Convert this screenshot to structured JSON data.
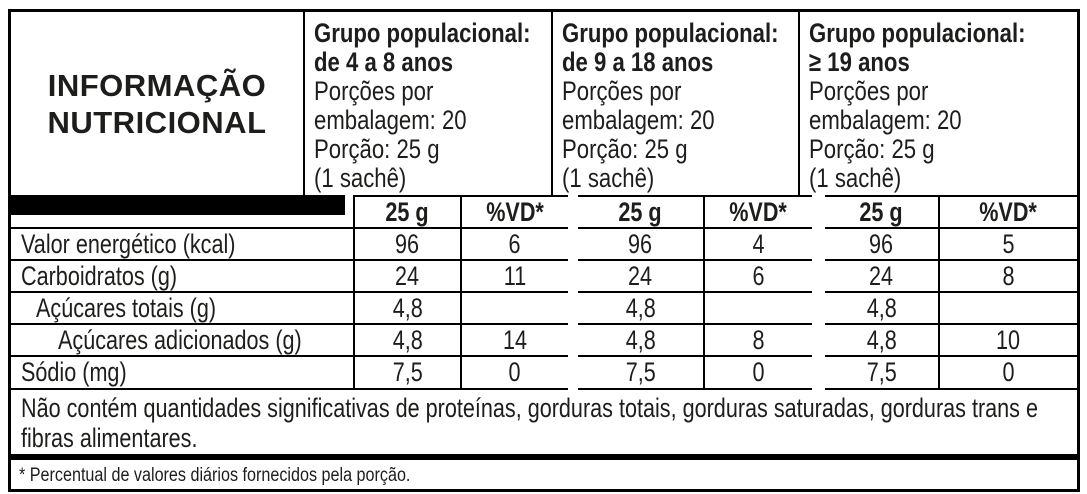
{
  "colors": {
    "border": "#000000",
    "header_bar": "#000000",
    "background": "#ffffff",
    "text": "#1d1d1b"
  },
  "title": "INFORMAÇÃO NUTRICIONAL",
  "groups": [
    {
      "group_label": "Grupo populacional:",
      "age_range": "de 4 a 8 anos",
      "servings_line1": "Porções por",
      "servings_line2": "embalagem: 20",
      "portion": "Porção: 25 g",
      "portion_note": "(1 sachê)",
      "amount_header": "25 g",
      "dv_header": "%VD*"
    },
    {
      "group_label": "Grupo populacional:",
      "age_range": "de 9 a 18 anos",
      "servings_line1": "Porções por",
      "servings_line2": "embalagem: 20",
      "portion": "Porção: 25 g",
      "portion_note": "(1 sachê)",
      "amount_header": "25 g",
      "dv_header": "%VD*"
    },
    {
      "group_label": "Grupo populacional:",
      "age_range": "≥ 19 anos",
      "servings_line1": "Porções por",
      "servings_line2": "embalagem: 20",
      "portion": "Porção: 25 g",
      "portion_note": "(1 sachê)",
      "amount_header": "25 g",
      "dv_header": "%VD*"
    }
  ],
  "rows": [
    {
      "name": "Valor energético (kcal)",
      "g1": {
        "amount": "96",
        "dv": "6"
      },
      "g2": {
        "amount": "96",
        "dv": "4"
      },
      "g3": {
        "amount": "96",
        "dv": "5"
      }
    },
    {
      "name": "Carboidratos (g)",
      "g1": {
        "amount": "24",
        "dv": "11"
      },
      "g2": {
        "amount": "24",
        "dv": "6"
      },
      "g3": {
        "amount": "24",
        "dv": "8"
      }
    },
    {
      "name": "Açúcares totais (g)",
      "g1": {
        "amount": "4,8",
        "dv": ""
      },
      "g2": {
        "amount": "4,8",
        "dv": ""
      },
      "g3": {
        "amount": "4,8",
        "dv": ""
      }
    },
    {
      "name": "Açúcares adicionados (g)",
      "g1": {
        "amount": "4,8",
        "dv": "14"
      },
      "g2": {
        "amount": "4,8",
        "dv": "8"
      },
      "g3": {
        "amount": "4,8",
        "dv": "10"
      }
    },
    {
      "name": "Sódio (mg)",
      "g1": {
        "amount": "7,5",
        "dv": "0"
      },
      "g2": {
        "amount": "7,5",
        "dv": "0"
      },
      "g3": {
        "amount": "7,5",
        "dv": "0"
      }
    }
  ],
  "no_significant_amounts_note": "Não contém quantidades significativas de proteínas, gorduras totais, gorduras saturadas, gorduras trans e fibras alimentares.",
  "footnote": "* Percentual de valores diários fornecidos pela porção."
}
